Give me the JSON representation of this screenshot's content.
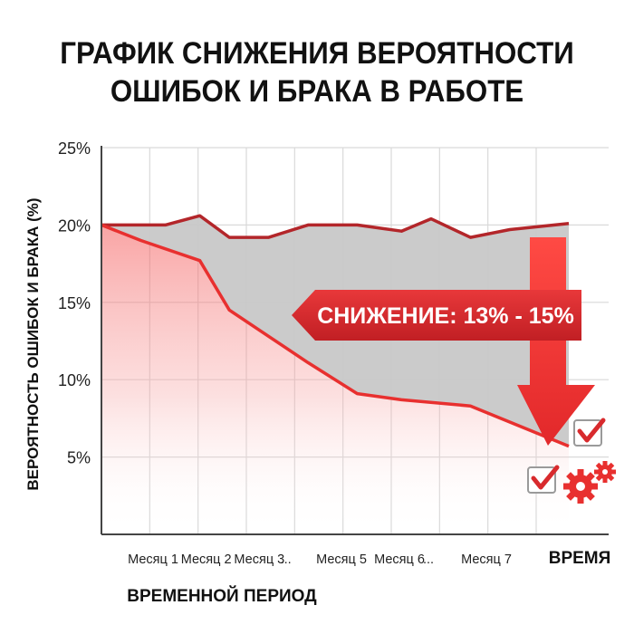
{
  "title": {
    "line1": "ГРАФИК СНИЖЕНИЯ ВЕРОЯТНОСТИ",
    "line2": "ОШИБОК И БРАКА В РАБОТЕ"
  },
  "time_label": "ВРЕМЯ",
  "banner_text": "СНИЖЕНИЕ: 13% - 15%",
  "colors": {
    "accent_red": "#e8302f",
    "dark_red": "#b3262a",
    "gap_gray": "#c8c8c8",
    "grid": "#d9d9d9"
  },
  "icons": [
    "checkbox-check-icon",
    "gears-icon"
  ],
  "chart_data": {
    "type": "area",
    "xlabel": "ВРЕМЕННОЙ ПЕРИОД",
    "ylabel": "ВЕРОЯТНОСТЬ ОШИБОК И БРАКА (%)",
    "ylim": [
      0,
      25
    ],
    "yticks": [
      "25%",
      "20%",
      "15%",
      "10%",
      "5%"
    ],
    "ytick_values": [
      25,
      20,
      15,
      10,
      5
    ],
    "xlim": [
      0,
      10
    ],
    "xtick_labels": [
      {
        "label": "Месяц 1",
        "x": 0.75
      },
      {
        "label": "Месяц 2",
        "x": 1.85
      },
      {
        "label": "Месяц 3",
        "x": 2.95
      },
      {
        "label": "...",
        "x": 3.5
      },
      {
        "label": "Месяц 5",
        "x": 4.65
      },
      {
        "label": "Месяц 6",
        "x": 5.85
      },
      {
        "label": "...",
        "x": 6.45
      },
      {
        "label": "Месяц 7",
        "x": 7.65
      }
    ],
    "grid": true,
    "series": [
      {
        "x": [
          0,
          1.3,
          2,
          2.6,
          3.4,
          4.2,
          5.2,
          6.1,
          6.7,
          7.5,
          8.3,
          9.5
        ],
        "values": [
          20,
          20,
          20.6,
          19.2,
          19.2,
          20,
          20,
          19.6,
          20.4,
          19.2,
          19.7,
          20.1
        ]
      },
      {
        "x": [
          0,
          0.8,
          2,
          2.6,
          3.4,
          4.2,
          5.2,
          6.1,
          7.5,
          9.5
        ],
        "values": [
          20,
          19,
          17.7,
          14.5,
          12.8,
          11.1,
          9.1,
          8.7,
          8.3,
          5.7
        ]
      }
    ]
  }
}
